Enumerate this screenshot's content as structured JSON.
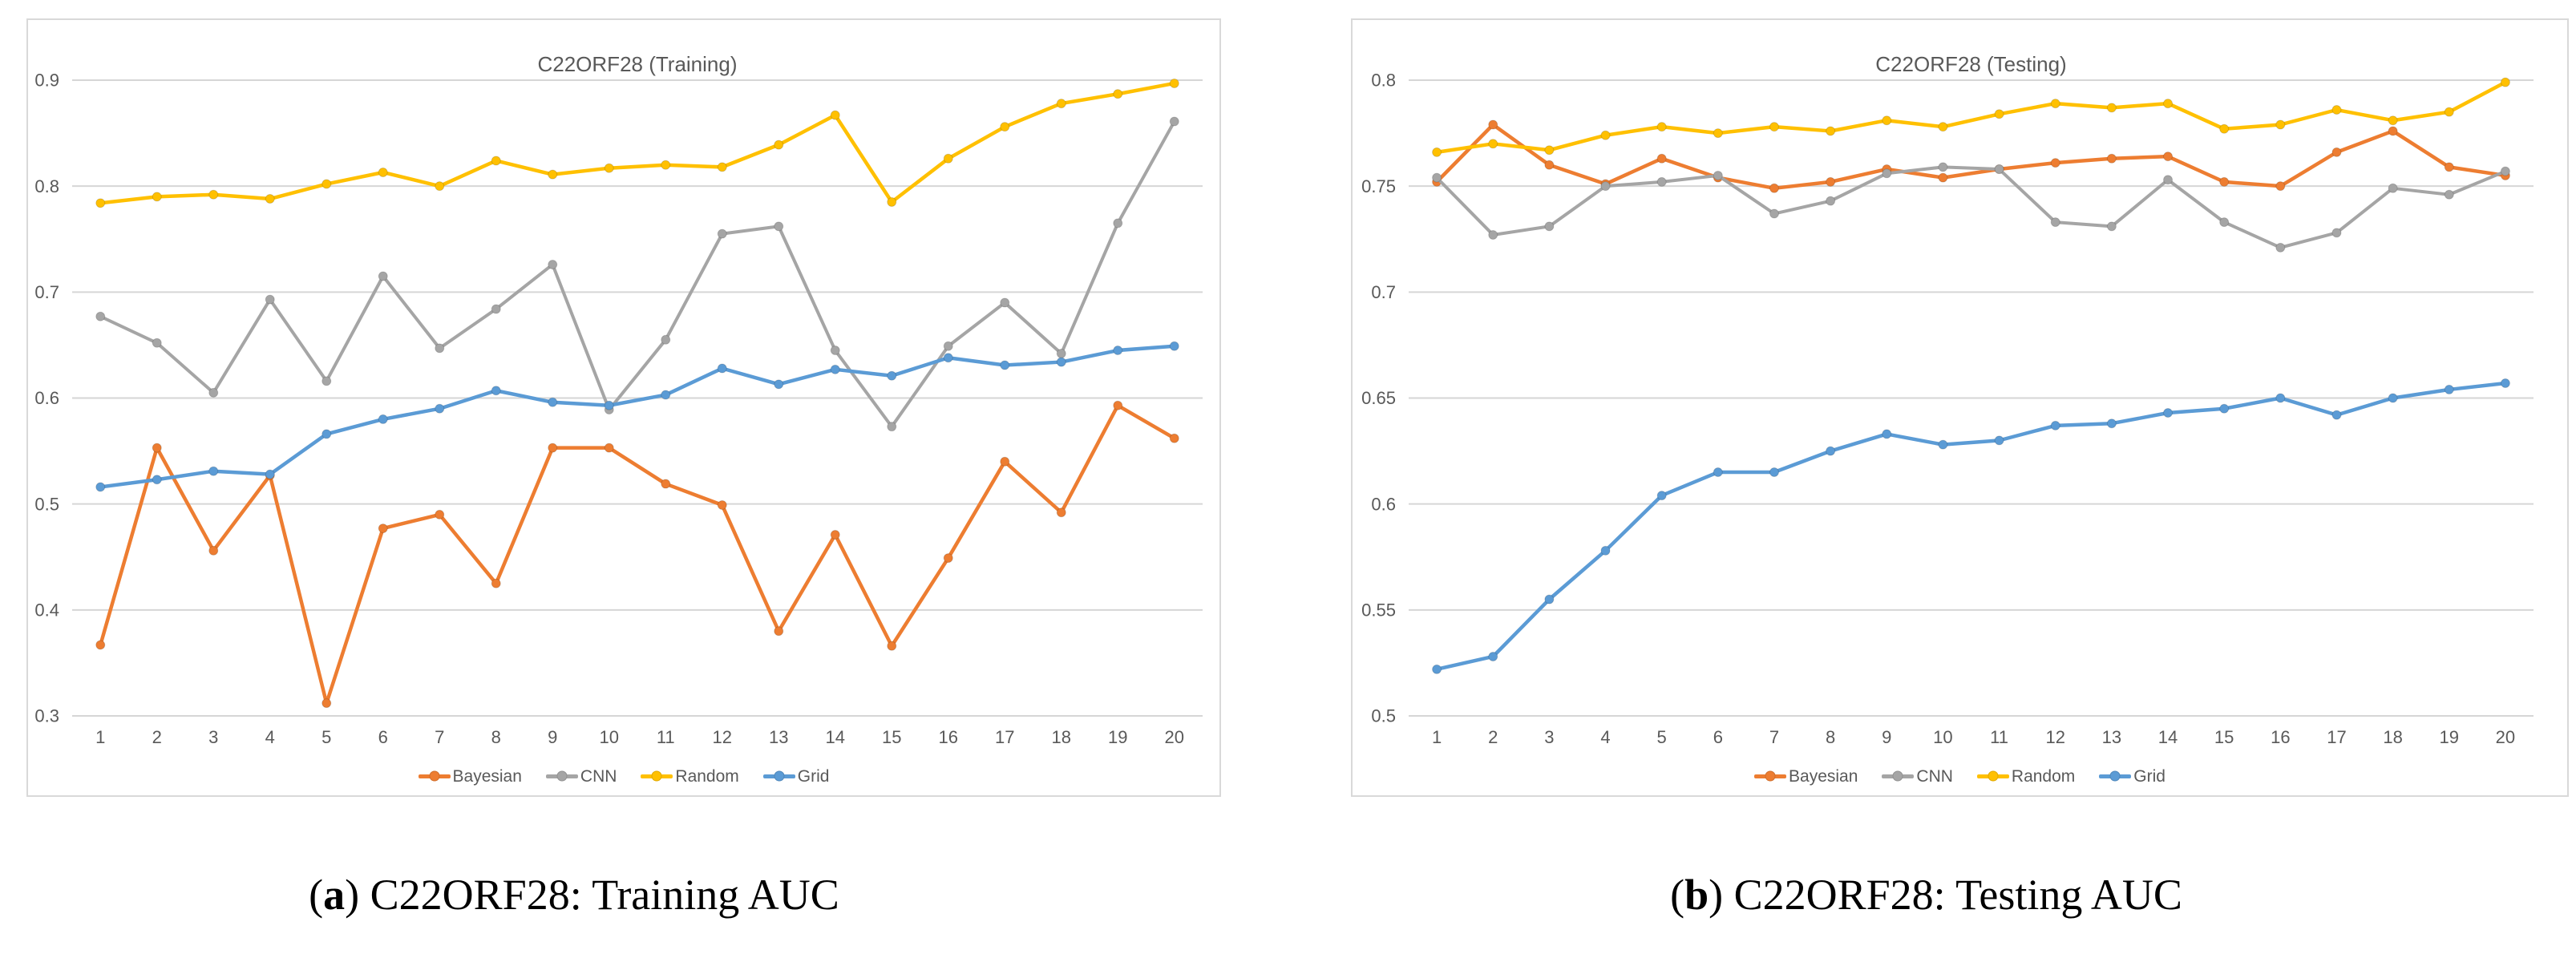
{
  "figure": {
    "captions": [
      {
        "pre": "(",
        "letter": "a",
        "post": ") ",
        "text": "C22ORF28: Training AUC"
      },
      {
        "pre": "(",
        "letter": "b",
        "post": ") ",
        "text": "C22ORF28: Testing AUC"
      }
    ]
  },
  "colors": {
    "bayesian": "#ED7D31",
    "cnn": "#A5A5A5",
    "random": "#FFC000",
    "grid_series": "#5B9BD5",
    "gridline": "#D6D6D6",
    "axis_text": "#595959",
    "panel_border": "#D9D9D9"
  },
  "chart_data": [
    {
      "type": "line",
      "title": "C22ORF28 (Training)",
      "x_categories": [
        1,
        2,
        3,
        4,
        5,
        6,
        7,
        8,
        9,
        10,
        11,
        12,
        13,
        14,
        15,
        16,
        17,
        18,
        19,
        20
      ],
      "xlabel": "",
      "ylabel": "",
      "ylim": [
        0.3,
        0.9
      ],
      "ytick_step": 0.1,
      "grid": true,
      "legend_position": "bottom",
      "series": [
        {
          "name": "Bayesian",
          "color": "#ED7D31",
          "values": [
            0.367,
            0.553,
            0.456,
            0.527,
            0.312,
            0.477,
            0.49,
            0.425,
            0.553,
            0.553,
            0.519,
            0.499,
            0.38,
            0.471,
            0.366,
            0.449,
            0.54,
            0.492,
            0.593,
            0.562
          ]
        },
        {
          "name": "CNN",
          "color": "#A5A5A5",
          "values": [
            0.677,
            0.652,
            0.605,
            0.693,
            0.616,
            0.715,
            0.647,
            0.684,
            0.726,
            0.589,
            0.655,
            0.755,
            0.762,
            0.645,
            0.573,
            0.649,
            0.69,
            0.642,
            0.765,
            0.861
          ]
        },
        {
          "name": "Random",
          "color": "#FFC000",
          "values": [
            0.784,
            0.79,
            0.792,
            0.788,
            0.802,
            0.813,
            0.8,
            0.824,
            0.811,
            0.817,
            0.82,
            0.818,
            0.839,
            0.867,
            0.785,
            0.826,
            0.856,
            0.878,
            0.887,
            0.897
          ]
        },
        {
          "name": "Grid",
          "color": "#5B9BD5",
          "values": [
            0.516,
            0.523,
            0.531,
            0.528,
            0.566,
            0.58,
            0.59,
            0.607,
            0.596,
            0.593,
            0.603,
            0.628,
            0.613,
            0.627,
            0.621,
            0.638,
            0.631,
            0.634,
            0.645,
            0.649
          ]
        }
      ]
    },
    {
      "type": "line",
      "title": "C22ORF28 (Testing)",
      "x_categories": [
        1,
        2,
        3,
        4,
        5,
        6,
        7,
        8,
        9,
        10,
        11,
        12,
        13,
        14,
        15,
        16,
        17,
        18,
        19,
        20
      ],
      "xlabel": "",
      "ylabel": "",
      "ylim": [
        0.5,
        0.8
      ],
      "ytick_step": 0.05,
      "grid": true,
      "legend_position": "bottom",
      "series": [
        {
          "name": "Bayesian",
          "color": "#ED7D31",
          "values": [
            0.752,
            0.779,
            0.76,
            0.751,
            0.763,
            0.754,
            0.749,
            0.752,
            0.758,
            0.754,
            0.758,
            0.761,
            0.763,
            0.764,
            0.752,
            0.75,
            0.766,
            0.776,
            0.759,
            0.755
          ]
        },
        {
          "name": "CNN",
          "color": "#A5A5A5",
          "values": [
            0.754,
            0.727,
            0.731,
            0.75,
            0.752,
            0.755,
            0.737,
            0.743,
            0.756,
            0.759,
            0.758,
            0.733,
            0.731,
            0.753,
            0.733,
            0.721,
            0.728,
            0.749,
            0.746,
            0.757
          ]
        },
        {
          "name": "Random",
          "color": "#FFC000",
          "values": [
            0.766,
            0.77,
            0.767,
            0.774,
            0.778,
            0.775,
            0.778,
            0.776,
            0.781,
            0.778,
            0.784,
            0.789,
            0.787,
            0.789,
            0.777,
            0.779,
            0.786,
            0.781,
            0.785,
            0.799
          ]
        },
        {
          "name": "Grid",
          "color": "#5B9BD5",
          "values": [
            0.522,
            0.528,
            0.555,
            0.578,
            0.604,
            0.615,
            0.615,
            0.625,
            0.633,
            0.628,
            0.63,
            0.637,
            0.638,
            0.643,
            0.645,
            0.65,
            0.642,
            0.65,
            0.654,
            0.657
          ]
        }
      ]
    }
  ]
}
